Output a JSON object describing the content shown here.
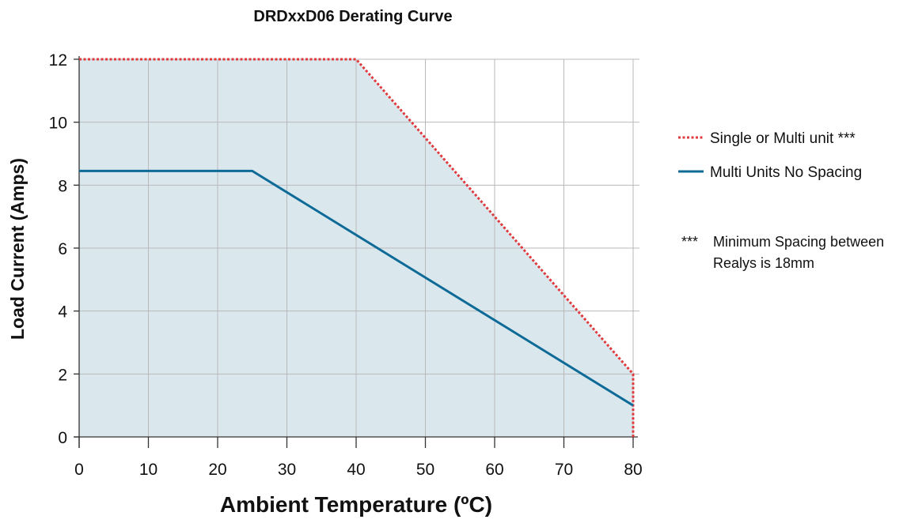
{
  "chart_data": {
    "type": "line",
    "title": "DRDxxD06 Derating Curve",
    "xlabel": "Ambient Temperature (ºC)",
    "ylabel": "Load Current (Amps)",
    "xlim": [
      0,
      80
    ],
    "ylim": [
      0,
      12
    ],
    "x_ticks": [
      0,
      10,
      20,
      30,
      40,
      50,
      60,
      70,
      80
    ],
    "y_ticks": [
      0,
      2,
      4,
      6,
      8,
      10,
      12
    ],
    "grid": true,
    "legend_position": "right",
    "series": [
      {
        "name": "Single or Multi unit ***",
        "style": "dotted",
        "color": "#e03a3e",
        "filled": true,
        "fill_color": "#dae8ee",
        "x": [
          0,
          40,
          80,
          80
        ],
        "y": [
          12,
          12,
          2,
          0
        ]
      },
      {
        "name": "Multi Units No Spacing",
        "style": "solid",
        "color": "#0e6a96",
        "x": [
          0,
          25,
          80
        ],
        "y": [
          8.45,
          8.45,
          1.0
        ]
      }
    ],
    "note": {
      "marker": "***",
      "lines": [
        "Minimum Spacing between",
        "Realys is 18mm"
      ]
    }
  }
}
